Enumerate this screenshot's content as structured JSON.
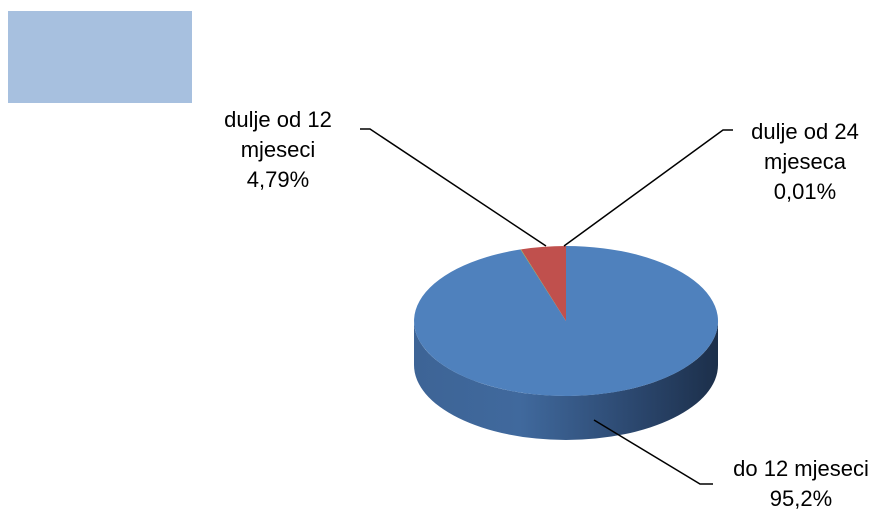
{
  "chart_data": {
    "type": "pie",
    "style": "3d",
    "categories": [
      "do 12 mjeseci",
      "dulje od 12 mjeseci",
      "dulje od 24 mjeseca"
    ],
    "values": [
      95.2,
      4.79,
      0.01
    ],
    "value_labels": [
      "95,2%",
      "4,79%",
      "0,01%"
    ],
    "colors": [
      "#4f81bd",
      "#c0504d",
      "#9bbb59"
    ],
    "legend": "top-left",
    "legend_color": "#a7c0df",
    "title": ""
  },
  "labels": {
    "slice_0": {
      "line1": "do 12 mjeseci",
      "line2": "",
      "percent": "95,2%"
    },
    "slice_1": {
      "line1": "dulje od 12",
      "line2": "mjeseci",
      "percent": "4,79%"
    },
    "slice_2": {
      "line1": "dulje od 24",
      "line2": "mjeseca",
      "percent": "0,01%"
    }
  }
}
